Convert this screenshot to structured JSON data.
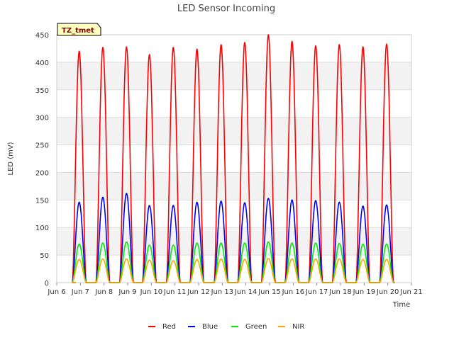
{
  "chart_data": {
    "type": "line",
    "title": "LED Sensor Incoming",
    "xlabel": "Time",
    "ylabel": "LED (mV)",
    "badge": "TZ_tmet",
    "xlim": [
      6,
      21
    ],
    "ylim": [
      0,
      450
    ],
    "x_ticks": [
      "Jun 6",
      "Jun 7",
      "Jun 8",
      "Jun 9",
      "Jun 10",
      "Jun 11",
      "Jun 12",
      "Jun 13",
      "Jun 14",
      "Jun 15",
      "Jun 16",
      "Jun 17",
      "Jun 18",
      "Jun 19",
      "Jun 20",
      "Jun 21"
    ],
    "y_ticks": [
      0,
      50,
      100,
      150,
      200,
      250,
      300,
      350,
      400,
      450
    ],
    "grid": true,
    "legend_position": "bottom",
    "day_centers": [
      6.95,
      7.95,
      8.95,
      9.92,
      10.93,
      11.93,
      12.95,
      13.95,
      14.95,
      15.95,
      16.95,
      17.95,
      18.95,
      19.95
    ],
    "series": [
      {
        "name": "Red",
        "color": "#ff0000",
        "daily_peaks": [
          420,
          427,
          428,
          414,
          427,
          424,
          432,
          436,
          450,
          438,
          430,
          432,
          428,
          433
        ]
      },
      {
        "name": "Blue",
        "color": "#0000ff",
        "daily_peaks": [
          146,
          155,
          162,
          140,
          140,
          146,
          148,
          145,
          153,
          150,
          149,
          146,
          139,
          141
        ]
      },
      {
        "name": "Green",
        "color": "#00ee00",
        "daily_peaks": [
          70,
          72,
          74,
          68,
          68,
          72,
          72,
          72,
          74,
          72,
          72,
          71,
          70,
          70
        ]
      },
      {
        "name": "NIR",
        "color": "#ffa500",
        "daily_peaks": [
          42,
          43,
          43,
          41,
          40,
          42,
          43,
          42,
          44,
          43,
          43,
          43,
          42,
          42
        ]
      }
    ]
  }
}
